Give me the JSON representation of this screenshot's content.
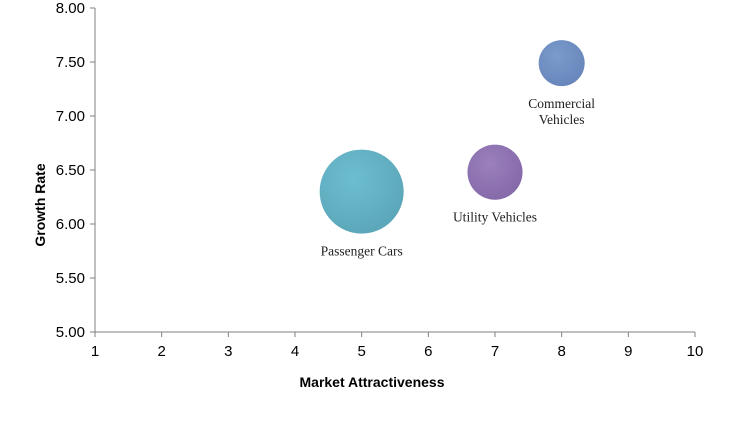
{
  "chart_data": {
    "type": "bubble",
    "title": "",
    "xlabel": "Market Attractiveness",
    "ylabel": "Growth Rate",
    "xlim": [
      1,
      10
    ],
    "ylim": [
      5.0,
      8.0
    ],
    "x_ticks": [
      "1",
      "2",
      "3",
      "4",
      "5",
      "6",
      "7",
      "8",
      "9",
      "10"
    ],
    "y_ticks": [
      "5.00",
      "5.50",
      "6.00",
      "6.50",
      "7.00",
      "7.50",
      "8.00"
    ],
    "grid": false,
    "legend": "none",
    "series": [
      {
        "label_lines": [
          "Passenger Cars"
        ],
        "x": 5,
        "y": 6.3,
        "size": 1.0,
        "color": "#6dbdd0",
        "color_dark": "#5aa6b8"
      },
      {
        "label_lines": [
          "Utility Vehicles"
        ],
        "x": 7,
        "y": 6.48,
        "size": 0.43,
        "color": "#9b80bd",
        "color_dark": "#8468a8"
      },
      {
        "label_lines": [
          "Commercial",
          "Vehicles"
        ],
        "x": 8,
        "y": 7.49,
        "size": 0.3,
        "color": "#7b9bcc",
        "color_dark": "#6785ba"
      }
    ]
  }
}
